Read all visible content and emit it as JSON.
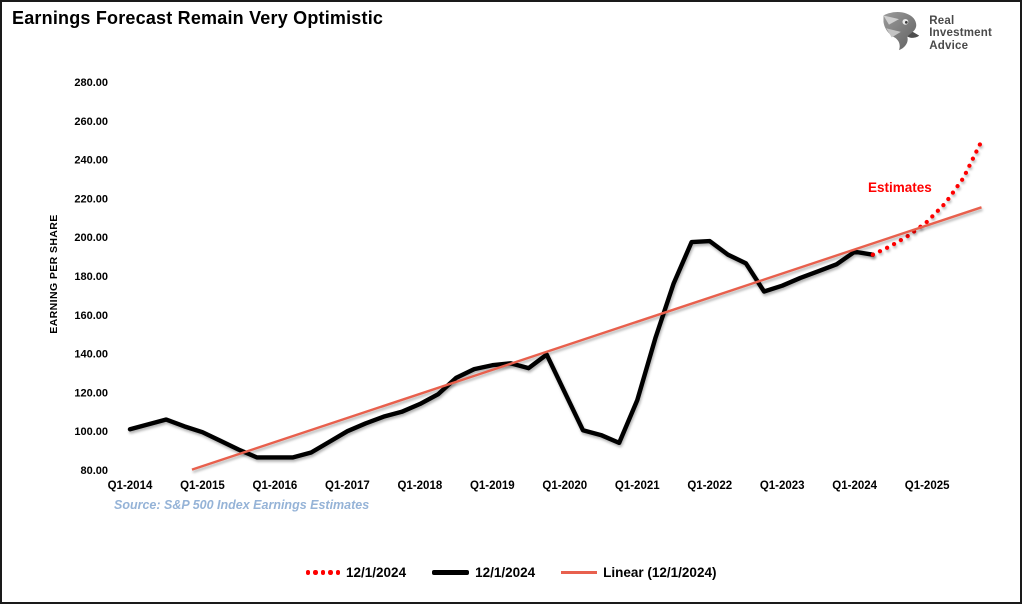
{
  "page": {
    "title": "Earnings Forecast Remain Very Optimistic"
  },
  "logo": {
    "icon": "eagle-icon",
    "lines": [
      "Real",
      "Investment",
      "Advice"
    ]
  },
  "chart_data": {
    "type": "line",
    "title": "Earnings Forecast Remain Very Optimistic",
    "xlabel": "",
    "ylabel": "EARNING PER SHARE",
    "ylim": [
      80,
      280
    ],
    "y_tick_step": 20,
    "y_tick_labels": [
      "280.00",
      "260.00",
      "240.00",
      "220.00",
      "200.00",
      "180.00",
      "160.00",
      "140.00",
      "120.00",
      "100.00",
      "80.00"
    ],
    "x_tick_labels": [
      "Q1-2014",
      "Q1-2015",
      "Q1-2016",
      "Q1-2017",
      "Q1-2018",
      "Q1-2019",
      "Q1-2020",
      "Q1-2021",
      "Q1-2022",
      "Q1-2023",
      "Q1-2024",
      "Q1-2025"
    ],
    "x_unit": "quarter",
    "ticks_every_quarters": 4,
    "grid": false,
    "annotation": {
      "text": "Estimates",
      "color": "#FF0000"
    },
    "source_note": "Source: S&P 500 Index Earnings Estimates",
    "legend": {
      "position": "bottom-center",
      "items": [
        {
          "label": "12/1/2024",
          "style": "dotted",
          "color": "#FE0000"
        },
        {
          "label": "12/1/2024",
          "style": "solid-thick",
          "color": "#000000"
        },
        {
          "label": "Linear (12/1/2024)",
          "style": "solid-thin",
          "color": "#E8604E"
        }
      ]
    },
    "series": [
      {
        "name": "12/1/2024",
        "role": "actuals",
        "color": "#000000",
        "start_quarter": "Q1-2014",
        "start_q_index": 0,
        "values": [
          101,
          103.5,
          106,
          102.5,
          99.5,
          95,
          90.5,
          86.5,
          86.5,
          86.5,
          89,
          94.5,
          100,
          104,
          107.5,
          110,
          114,
          119,
          127.5,
          132,
          134,
          135,
          132.5,
          139.5,
          120,
          100.5,
          98,
          94,
          116,
          148,
          176,
          197.5,
          198,
          191,
          186.5,
          172,
          175,
          179,
          182.5,
          186,
          192.5,
          191
        ]
      },
      {
        "name": "12/1/2024",
        "role": "estimates-dotted",
        "color": "#FE0000",
        "start_quarter": "Q2-2024",
        "start_q_index": 41,
        "values": [
          191,
          195.5,
          201,
          208,
          217.5,
          230.5,
          249.5
        ]
      },
      {
        "name": "Linear (12/1/2024)",
        "role": "trendline",
        "color": "#E8604E",
        "points": [
          {
            "q_index": 3.42,
            "value": 80.2
          },
          {
            "q_index": 47,
            "value": 215.4
          }
        ]
      }
    ]
  }
}
